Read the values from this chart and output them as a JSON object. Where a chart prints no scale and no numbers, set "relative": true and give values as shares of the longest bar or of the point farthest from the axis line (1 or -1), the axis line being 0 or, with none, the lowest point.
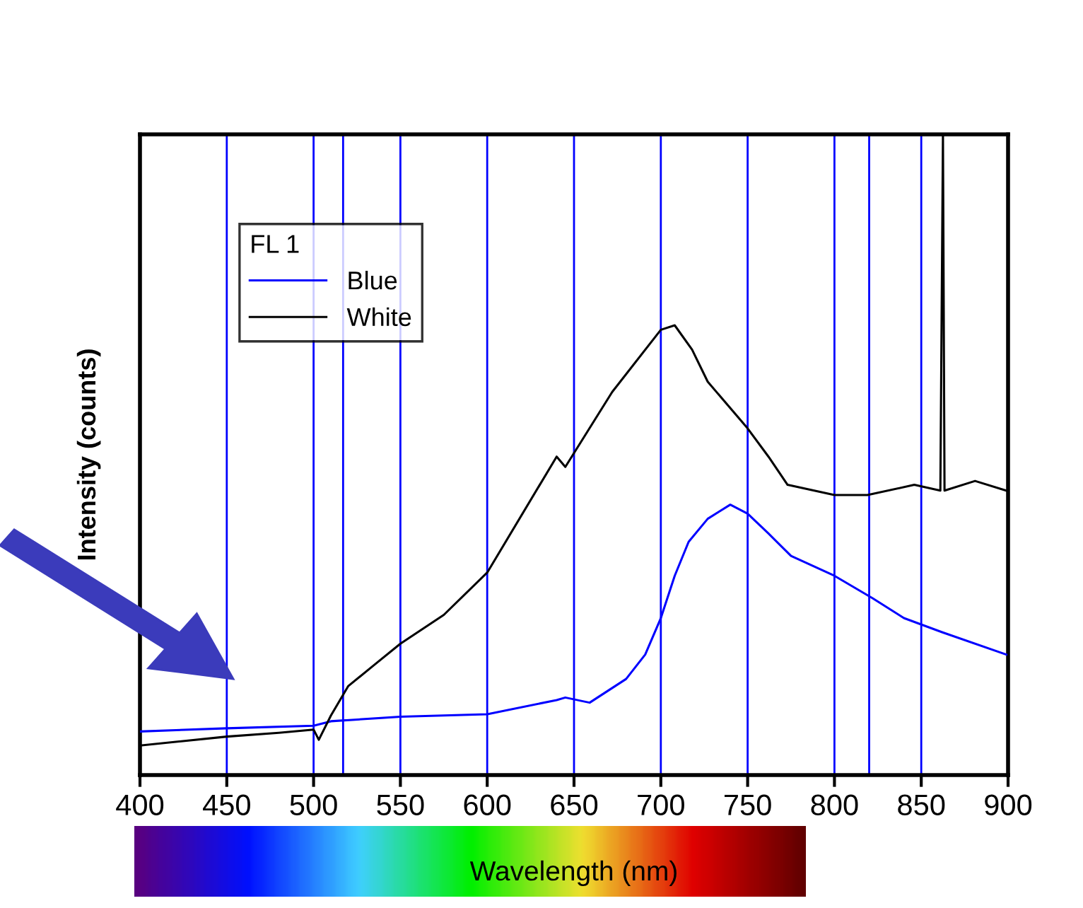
{
  "chart_data": {
    "type": "line",
    "xlabel": "Wavelength (nm)",
    "ylabel": "Intensity (counts)",
    "legend_title": "FL 1",
    "relative": true,
    "xlim": [
      400,
      900
    ],
    "xticks": [
      400,
      450,
      500,
      550,
      600,
      650,
      700,
      750,
      800,
      850,
      900
    ],
    "tick_labels": "x",
    "grid": false,
    "legend": "top left",
    "marker": "none",
    "line_style": "solid",
    "series": [
      {
        "name": "Blue",
        "color": "#0000ff",
        "x": [
          400,
          450,
          500,
          510,
          550,
          600,
          640,
          645,
          659,
          680,
          691,
          700,
          708,
          716,
          727,
          740,
          750,
          762,
          775,
          800,
          822,
          840,
          862,
          899
        ],
        "values": [
          0.068,
          0.073,
          0.077,
          0.084,
          0.091,
          0.095,
          0.117,
          0.121,
          0.113,
          0.15,
          0.188,
          0.245,
          0.311,
          0.364,
          0.4,
          0.422,
          0.408,
          0.377,
          0.342,
          0.311,
          0.276,
          0.245,
          0.223,
          0.188
        ]
      },
      {
        "name": "White",
        "color": "#000000",
        "x": [
          400,
          450,
          480,
          500,
          503,
          510,
          520,
          535,
          550,
          575,
          600,
          640,
          645,
          672,
          700,
          708,
          718,
          727,
          750,
          762,
          773,
          800,
          819,
          846,
          861,
          862.5,
          863.4,
          881,
          899
        ],
        "values": [
          0.046,
          0.06,
          0.066,
          0.071,
          0.055,
          0.093,
          0.139,
          0.172,
          0.205,
          0.25,
          0.316,
          0.497,
          0.481,
          0.598,
          0.695,
          0.702,
          0.664,
          0.614,
          0.541,
          0.497,
          0.453,
          0.437,
          0.437,
          0.453,
          0.444,
          1.0,
          0.444,
          0.459,
          0.444
        ]
      }
    ],
    "ref_lines": [
      {
        "axis": "x",
        "value": 450,
        "color": "#0000ff"
      },
      {
        "axis": "x",
        "value": 500,
        "color": "#0000ff"
      },
      {
        "axis": "x",
        "value": 517,
        "color": "#0000ff"
      },
      {
        "axis": "x",
        "value": 550,
        "color": "#0000ff"
      },
      {
        "axis": "x",
        "value": 600,
        "color": "#0000ff"
      },
      {
        "axis": "x",
        "value": 650,
        "color": "#0000ff"
      },
      {
        "axis": "x",
        "value": 700,
        "color": "#0000ff"
      },
      {
        "axis": "x",
        "value": 750,
        "color": "#0000ff"
      },
      {
        "axis": "x",
        "value": 800,
        "color": "#0000ff"
      },
      {
        "axis": "x",
        "value": 820,
        "color": "#0000ff"
      },
      {
        "axis": "x",
        "value": 850,
        "color": "#0000ff"
      }
    ]
  }
}
